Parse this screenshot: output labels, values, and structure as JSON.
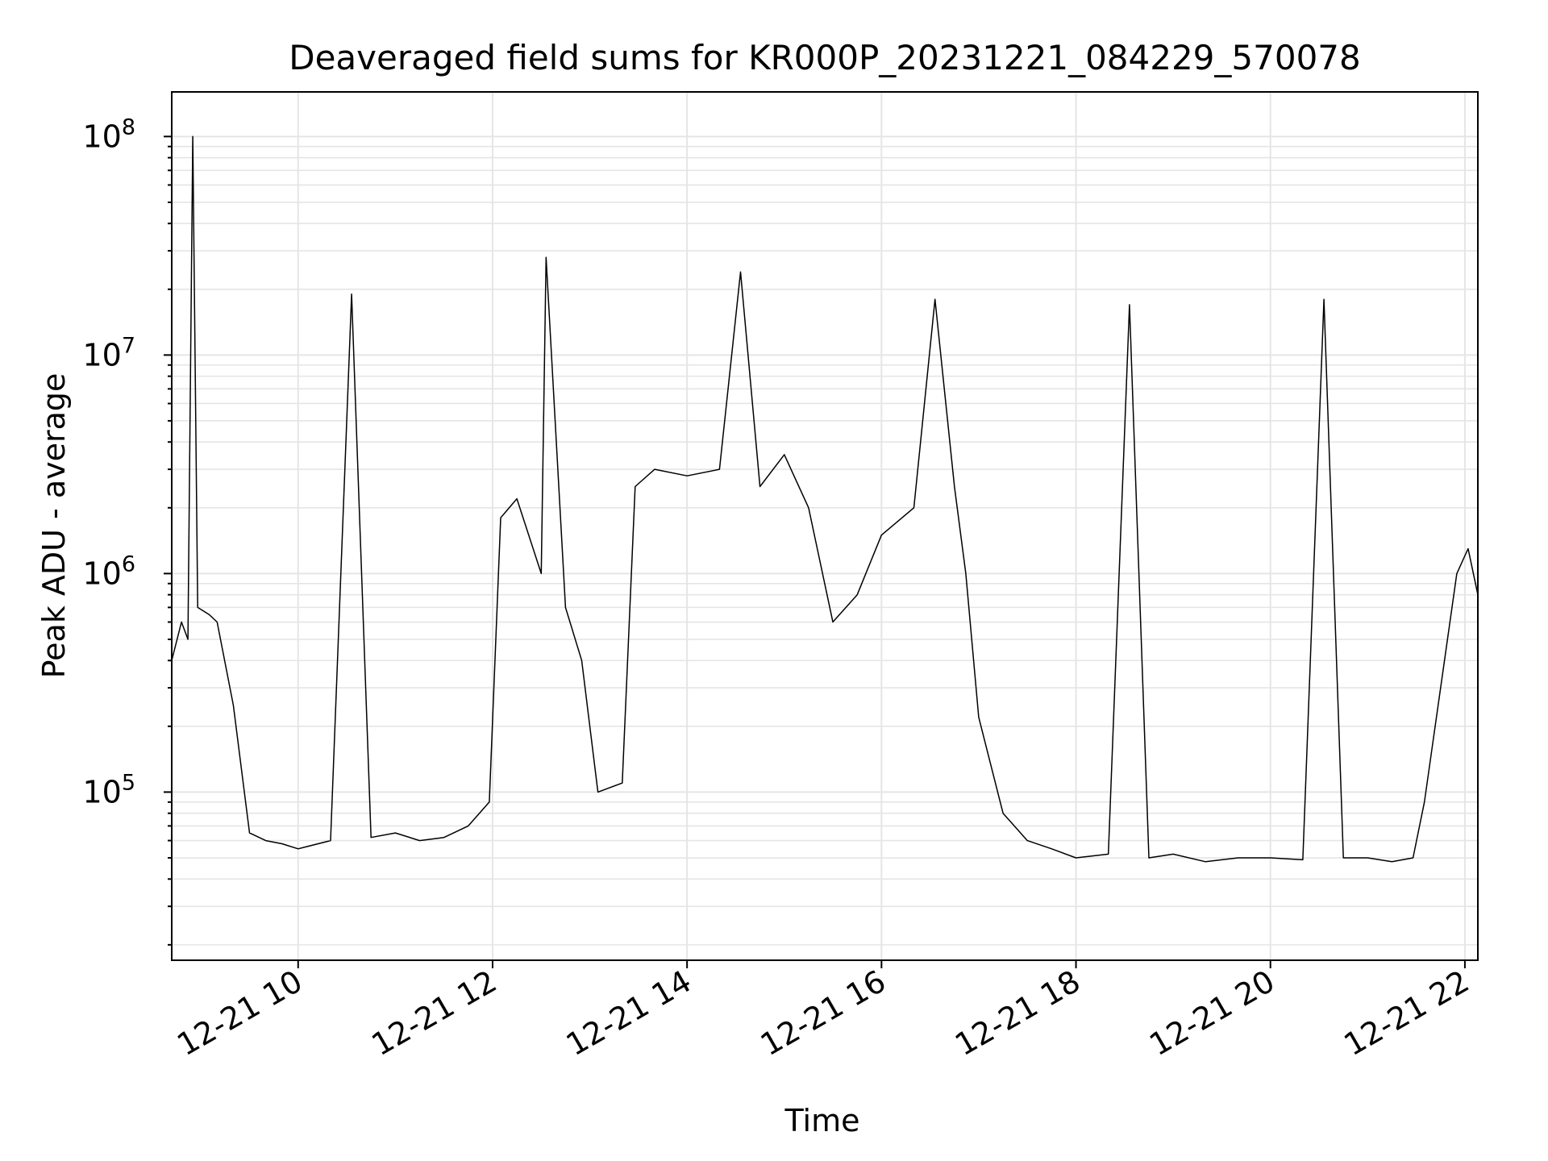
{
  "chart_data": {
    "type": "line",
    "title": "Deaveraged field sums for KR000P_20231221_084229_570078",
    "xlabel": "Time",
    "ylabel": "Peak ADU - average",
    "yscale": "log",
    "ylim": [
      17000,
      160000000
    ],
    "xlim": [
      "2023-12-21 08:42",
      "2023-12-21 22:08"
    ],
    "grid": "on (major and minor, light grey)",
    "line_color": "#000000",
    "grid_color": "#e5e5e5",
    "x_ticks": [
      {
        "t": "2023-12-21 10:00",
        "label": "12-21 10"
      },
      {
        "t": "2023-12-21 12:00",
        "label": "12-21 12"
      },
      {
        "t": "2023-12-21 14:00",
        "label": "12-21 14"
      },
      {
        "t": "2023-12-21 16:00",
        "label": "12-21 16"
      },
      {
        "t": "2023-12-21 18:00",
        "label": "12-21 18"
      },
      {
        "t": "2023-12-21 20:00",
        "label": "12-21 20"
      },
      {
        "t": "2023-12-21 22:00",
        "label": "12-21 22"
      }
    ],
    "y_ticks": [
      {
        "value": 100000,
        "base": "10",
        "exp": "5"
      },
      {
        "value": 1000000,
        "base": "10",
        "exp": "6"
      },
      {
        "value": 10000000,
        "base": "10",
        "exp": "7"
      },
      {
        "value": 100000000,
        "base": "10",
        "exp": "8"
      }
    ],
    "series": [
      {
        "x": [
          "2023-12-21 08:42",
          "2023-12-21 08:48",
          "2023-12-21 08:52",
          "2023-12-21 08:55",
          "2023-12-21 08:58",
          "2023-12-21 09:05",
          "2023-12-21 09:10",
          "2023-12-21 09:20",
          "2023-12-21 09:30",
          "2023-12-21 09:40",
          "2023-12-21 09:50",
          "2023-12-21 10:00",
          "2023-12-21 10:20",
          "2023-12-21 10:33",
          "2023-12-21 10:45",
          "2023-12-21 11:00",
          "2023-12-21 11:15",
          "2023-12-21 11:30",
          "2023-12-21 11:45",
          "2023-12-21 11:58",
          "2023-12-21 12:05",
          "2023-12-21 12:15",
          "2023-12-21 12:30",
          "2023-12-21 12:33",
          "2023-12-21 12:45",
          "2023-12-21 12:55",
          "2023-12-21 13:05",
          "2023-12-21 13:20",
          "2023-12-21 13:28",
          "2023-12-21 13:40",
          "2023-12-21 14:00",
          "2023-12-21 14:20",
          "2023-12-21 14:33",
          "2023-12-21 14:45",
          "2023-12-21 15:00",
          "2023-12-21 15:15",
          "2023-12-21 15:30",
          "2023-12-21 15:45",
          "2023-12-21 16:00",
          "2023-12-21 16:20",
          "2023-12-21 16:33",
          "2023-12-21 16:45",
          "2023-12-21 16:52",
          "2023-12-21 17:00",
          "2023-12-21 17:15",
          "2023-12-21 17:30",
          "2023-12-21 17:45",
          "2023-12-21 18:00",
          "2023-12-21 18:20",
          "2023-12-21 18:33",
          "2023-12-21 18:45",
          "2023-12-21 19:00",
          "2023-12-21 19:20",
          "2023-12-21 19:40",
          "2023-12-21 20:00",
          "2023-12-21 20:20",
          "2023-12-21 20:33",
          "2023-12-21 20:45",
          "2023-12-21 21:00",
          "2023-12-21 21:15",
          "2023-12-21 21:28",
          "2023-12-21 21:35",
          "2023-12-21 21:45",
          "2023-12-21 21:55",
          "2023-12-21 22:02",
          "2023-12-21 22:08"
        ],
        "y": [
          400000,
          600000,
          500000,
          100000000,
          700000,
          650000,
          600000,
          250000,
          65000,
          60000,
          58000,
          55000,
          60000,
          19000000,
          62000,
          65000,
          60000,
          62000,
          70000,
          90000,
          1800000,
          2200000,
          1000000,
          28000000,
          700000,
          400000,
          100000,
          110000,
          2500000,
          3000000,
          2800000,
          3000000,
          24000000,
          2500000,
          3500000,
          2000000,
          600000,
          800000,
          1500000,
          2000000,
          18000000,
          2500000,
          1000000,
          220000,
          80000,
          60000,
          55000,
          50000,
          52000,
          17000000,
          50000,
          52000,
          48000,
          50000,
          50000,
          49000,
          18000000,
          50000,
          50000,
          48000,
          50000,
          90000,
          300000,
          1000000,
          1300000,
          800000
        ]
      }
    ]
  }
}
